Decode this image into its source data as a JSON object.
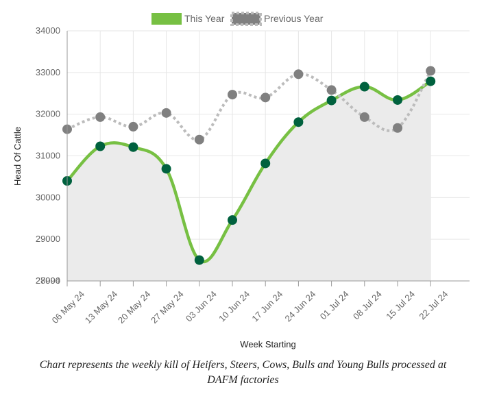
{
  "chart_data": {
    "type": "line",
    "ylabel": "Head Of Cattle",
    "xlabel": "Week Starting",
    "categories": [
      "06 May 24",
      "13 May 24",
      "20 May 24",
      "27 May 24",
      "03 Jun 24",
      "10 Jun 24",
      "17 Jun 24",
      "24 Jun 24",
      "01 Jul 24",
      "08 Jul 24",
      "15 Jul 24",
      "22 Jul 24"
    ],
    "ylim": [
      28000,
      34000
    ],
    "yticks": [
      "34000",
      "33000",
      "32000",
      "31000",
      "30000",
      "29000",
      "28000"
    ],
    "yticks_overlap_label": "27994",
    "grid": true,
    "legend_position": "top",
    "series": [
      {
        "name": "This Year",
        "color": "#77c043",
        "fill": "#ebebeb",
        "marker_color": "#00613e",
        "style": "solid",
        "values": [
          30400,
          31230,
          31210,
          30690,
          28500,
          29460,
          30820,
          31810,
          32330,
          32660,
          32340,
          32790
        ]
      },
      {
        "name": "Previous Year",
        "color": "#bcbcbc",
        "marker_color": "#808080",
        "style": "dotted",
        "values": [
          31640,
          31930,
          31700,
          32030,
          31390,
          32470,
          32400,
          32960,
          32580,
          31930,
          31670,
          33040
        ]
      }
    ]
  },
  "caption": {
    "line1": "Chart represents the weekly kill of Heifers, Steers, Cows, Bulls and Young Bulls processed at",
    "line2": "DAFM factories"
  }
}
